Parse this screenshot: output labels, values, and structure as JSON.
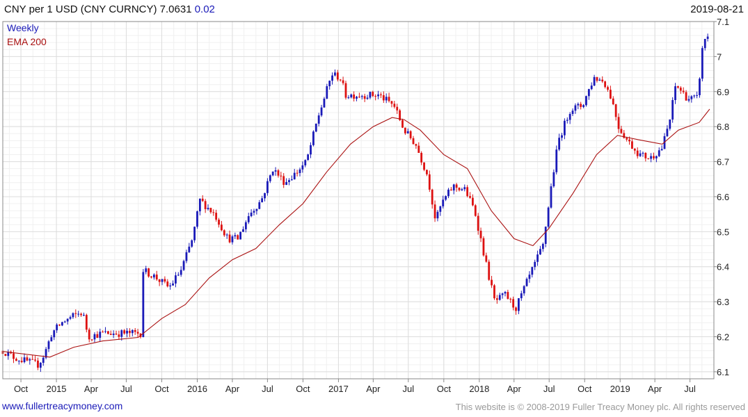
{
  "header": {
    "title": "CNY per 1 USD (CNY CURNCY) 7.0631",
    "change": "0.02",
    "date": "2019-08-21"
  },
  "footer": {
    "url": "www.fullertreacymoney.com",
    "copyright": "This website is © 2008-2019 Fuller Treacy Money plc. All rights reserved"
  },
  "colors": {
    "up": "#1a1ab8",
    "down": "#dd1111",
    "ema": "#aa1111",
    "grid": "#dddddd",
    "frame": "#888888"
  },
  "chart_data": {
    "type": "candlestick",
    "frequency_label": "Weekly",
    "legend": [
      "Weekly",
      "EMA 200"
    ],
    "legend_placement": "top-left",
    "grid": true,
    "y_axis_side": "right",
    "ylim": [
      6.08,
      7.1
    ],
    "yticks": [
      6.1,
      6.2,
      6.3,
      6.4,
      6.5,
      6.6,
      6.7,
      6.8,
      6.9,
      7.0,
      7.1
    ],
    "ytick_labels": [
      "6.1",
      "6.2",
      "6.3",
      "6.4",
      "6.5",
      "6.6",
      "6.7",
      "6.8",
      "6.9",
      "7",
      "7.1"
    ],
    "xlim": [
      "2014-08-15",
      "2019-09-01"
    ],
    "xticks": [
      {
        "label": "Oct",
        "date": "2014-10-01"
      },
      {
        "label": "2015",
        "date": "2015-01-01"
      },
      {
        "label": "Apr",
        "date": "2015-04-01"
      },
      {
        "label": "Jul",
        "date": "2015-07-01"
      },
      {
        "label": "Oct",
        "date": "2015-10-01"
      },
      {
        "label": "2016",
        "date": "2016-01-01"
      },
      {
        "label": "Apr",
        "date": "2016-04-01"
      },
      {
        "label": "Jul",
        "date": "2016-07-01"
      },
      {
        "label": "Oct",
        "date": "2016-10-01"
      },
      {
        "label": "2017",
        "date": "2017-01-01"
      },
      {
        "label": "Apr",
        "date": "2017-04-01"
      },
      {
        "label": "Jul",
        "date": "2017-07-01"
      },
      {
        "label": "Oct",
        "date": "2017-10-01"
      },
      {
        "label": "2018",
        "date": "2018-01-01"
      },
      {
        "label": "Apr",
        "date": "2018-04-01"
      },
      {
        "label": "Jul",
        "date": "2018-07-01"
      },
      {
        "label": "Oct",
        "date": "2018-10-01"
      },
      {
        "label": "2019",
        "date": "2019-01-01"
      },
      {
        "label": "Apr",
        "date": "2019-04-01"
      },
      {
        "label": "Jul",
        "date": "2019-07-01"
      }
    ],
    "price_path": [
      [
        "2014-08-15",
        6.16
      ],
      [
        "2014-09-15",
        6.14
      ],
      [
        "2014-10-15",
        6.13
      ],
      [
        "2014-11-15",
        6.12
      ],
      [
        "2014-12-01",
        6.15
      ],
      [
        "2014-12-20",
        6.21
      ],
      [
        "2015-01-15",
        6.24
      ],
      [
        "2015-02-15",
        6.26
      ],
      [
        "2015-03-10",
        6.27
      ],
      [
        "2015-03-25",
        6.2
      ],
      [
        "2015-05-01",
        6.21
      ],
      [
        "2015-06-15",
        6.21
      ],
      [
        "2015-08-10",
        6.21
      ],
      [
        "2015-08-14",
        6.39
      ],
      [
        "2015-09-15",
        6.37
      ],
      [
        "2015-10-20",
        6.34
      ],
      [
        "2015-11-20",
        6.39
      ],
      [
        "2015-12-20",
        6.48
      ],
      [
        "2016-01-08",
        6.59
      ],
      [
        "2016-02-15",
        6.55
      ],
      [
        "2016-03-20",
        6.48
      ],
      [
        "2016-04-15",
        6.48
      ],
      [
        "2016-05-15",
        6.55
      ],
      [
        "2016-06-15",
        6.59
      ],
      [
        "2016-07-15",
        6.68
      ],
      [
        "2016-08-15",
        6.64
      ],
      [
        "2016-09-15",
        6.67
      ],
      [
        "2016-10-10",
        6.7
      ],
      [
        "2016-11-10",
        6.83
      ],
      [
        "2016-12-15",
        6.95
      ],
      [
        "2017-01-05",
        6.94
      ],
      [
        "2017-01-20",
        6.89
      ],
      [
        "2017-03-01",
        6.89
      ],
      [
        "2017-04-15",
        6.89
      ],
      [
        "2017-05-25",
        6.86
      ],
      [
        "2017-06-20",
        6.79
      ],
      [
        "2017-07-20",
        6.75
      ],
      [
        "2017-08-20",
        6.66
      ],
      [
        "2017-09-10",
        6.53
      ],
      [
        "2017-09-25",
        6.58
      ],
      [
        "2017-10-25",
        6.63
      ],
      [
        "2017-11-25",
        6.62
      ],
      [
        "2017-12-20",
        6.56
      ],
      [
        "2018-01-20",
        6.4
      ],
      [
        "2018-02-10",
        6.3
      ],
      [
        "2018-03-10",
        6.32
      ],
      [
        "2018-04-05",
        6.28
      ],
      [
        "2018-05-10",
        6.37
      ],
      [
        "2018-06-15",
        6.46
      ],
      [
        "2018-07-05",
        6.62
      ],
      [
        "2018-07-25",
        6.76
      ],
      [
        "2018-08-25",
        6.85
      ],
      [
        "2018-09-25",
        6.86
      ],
      [
        "2018-10-25",
        6.94
      ],
      [
        "2018-11-20",
        6.93
      ],
      [
        "2018-12-10",
        6.88
      ],
      [
        "2018-12-28",
        6.8
      ],
      [
        "2019-01-20",
        6.76
      ],
      [
        "2019-02-20",
        6.72
      ],
      [
        "2019-03-20",
        6.71
      ],
      [
        "2019-04-20",
        6.74
      ],
      [
        "2019-05-10",
        6.82
      ],
      [
        "2019-05-25",
        6.92
      ],
      [
        "2019-06-25",
        6.88
      ],
      [
        "2019-07-20",
        6.88
      ],
      [
        "2019-08-05",
        7.05
      ],
      [
        "2019-08-21",
        7.06
      ]
    ],
    "ema_200": [
      [
        "2014-08-15",
        6.158
      ],
      [
        "2014-12-15",
        6.142
      ],
      [
        "2015-02-15",
        6.17
      ],
      [
        "2015-05-01",
        6.188
      ],
      [
        "2015-08-01",
        6.198
      ],
      [
        "2015-10-01",
        6.252
      ],
      [
        "2015-12-01",
        6.292
      ],
      [
        "2016-02-01",
        6.368
      ],
      [
        "2016-04-01",
        6.42
      ],
      [
        "2016-06-01",
        6.452
      ],
      [
        "2016-08-01",
        6.52
      ],
      [
        "2016-10-01",
        6.58
      ],
      [
        "2016-12-01",
        6.67
      ],
      [
        "2017-02-01",
        6.75
      ],
      [
        "2017-04-01",
        6.8
      ],
      [
        "2017-05-20",
        6.826
      ],
      [
        "2017-06-20",
        6.82
      ],
      [
        "2017-08-01",
        6.79
      ],
      [
        "2017-10-01",
        6.72
      ],
      [
        "2017-12-01",
        6.68
      ],
      [
        "2018-02-01",
        6.56
      ],
      [
        "2018-04-01",
        6.48
      ],
      [
        "2018-05-20",
        6.46
      ],
      [
        "2018-07-01",
        6.51
      ],
      [
        "2018-09-01",
        6.61
      ],
      [
        "2018-11-01",
        6.72
      ],
      [
        "2018-12-25",
        6.775
      ],
      [
        "2019-02-20",
        6.762
      ],
      [
        "2019-04-20",
        6.75
      ],
      [
        "2019-06-01",
        6.79
      ],
      [
        "2019-07-25",
        6.812
      ],
      [
        "2019-08-21",
        6.85
      ]
    ]
  }
}
